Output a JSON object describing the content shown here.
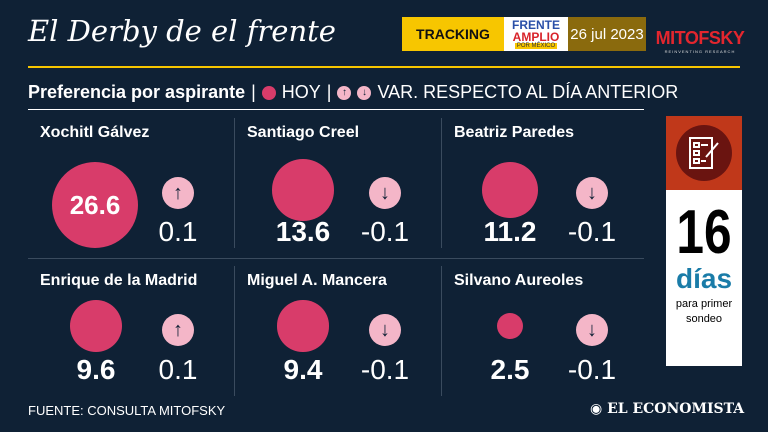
{
  "header": {
    "title": "El Derby de el frente",
    "tracking": "TRACKING",
    "frente_line1": "FRENTE",
    "frente_line2": "AMPLIO",
    "frente_line3": "POR MÉXICO",
    "date": "26 jul 2023",
    "brand": "MITOFSKY",
    "brand_tagline": "REINVENTING RESEARCH"
  },
  "subtitle": {
    "label": "Preferencia por aspirante",
    "sep": "|",
    "hoy": "HOY",
    "var": "VAR. RESPECTO AL DÍA ANTERIOR"
  },
  "candidates": [
    {
      "name": "Xochitl Gálvez",
      "value": "26.6",
      "change": "0.1",
      "direction": "up"
    },
    {
      "name": "Santiago Creel",
      "value": "13.6",
      "change": "-0.1",
      "direction": "down"
    },
    {
      "name": "Beatriz Paredes",
      "value": "11.2",
      "change": "-0.1",
      "direction": "down"
    },
    {
      "name": "Enrique de la Madrid",
      "value": "9.6",
      "change": "0.1",
      "direction": "up"
    },
    {
      "name": "Miguel A. Mancera",
      "value": "9.4",
      "change": "-0.1",
      "direction": "down"
    },
    {
      "name": "Silvano Aureoles",
      "value": "2.5",
      "change": "-0.1",
      "direction": "down"
    }
  ],
  "countdown": {
    "number": "16",
    "unit": "días",
    "note_line1": "para primer",
    "note_line2": "sondeo"
  },
  "footer": {
    "source": "FUENTE: CONSULTA MITOFSKY",
    "publisher": "EL ECONOMISTA"
  },
  "colors": {
    "background": "#0f2135",
    "accent": "#f7c600",
    "bubble": "#d83c6a",
    "arrow": "#f4b6c8"
  }
}
